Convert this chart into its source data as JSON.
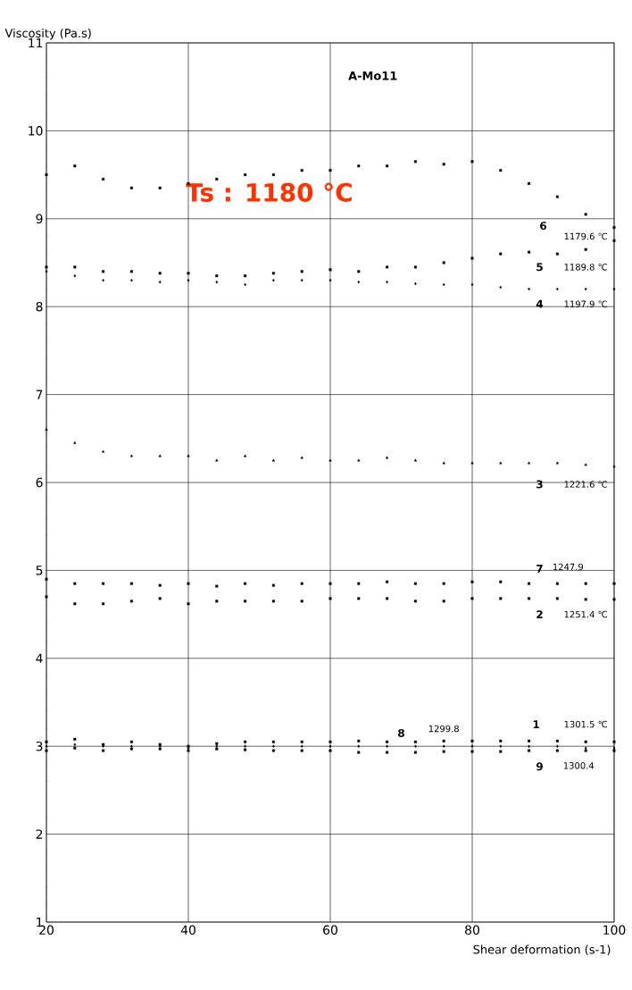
{
  "chart_data": {
    "type": "scatter",
    "title": "A-Mo11",
    "xlabel": "Shear deformation (s-1)",
    "ylabel": "Viscosity (Pa.s)",
    "x": [
      20,
      24,
      28,
      32,
      36,
      40,
      44,
      48,
      52,
      56,
      60,
      64,
      68,
      72,
      76,
      80,
      84,
      88,
      92,
      96,
      100
    ],
    "xlim": [
      20,
      100
    ],
    "xticks": [
      20,
      40,
      60,
      80,
      100
    ],
    "ylim": [
      1,
      11
    ],
    "yticks": [
      1,
      2,
      3,
      4,
      5,
      6,
      7,
      8,
      9,
      10,
      11
    ],
    "grid": true,
    "series": [
      {
        "name": "6",
        "color": "#000000",
        "marker": "square",
        "values": [
          9.5,
          9.6,
          9.45,
          9.35,
          9.35,
          9.4,
          9.45,
          9.5,
          9.5,
          9.55,
          9.55,
          9.6,
          9.6,
          9.65,
          9.62,
          9.65,
          9.55,
          9.4,
          9.25,
          9.05,
          8.9
        ]
      },
      {
        "name": "5",
        "color": "#000000",
        "marker": "square",
        "values": [
          8.45,
          8.45,
          8.4,
          8.4,
          8.38,
          8.38,
          8.35,
          8.35,
          8.38,
          8.4,
          8.42,
          8.4,
          8.45,
          8.45,
          8.5,
          8.55,
          8.6,
          8.62,
          8.6,
          8.65,
          8.75
        ]
      },
      {
        "name": "4",
        "color": "#000000",
        "marker": "diamond",
        "values": [
          8.4,
          8.35,
          8.3,
          8.3,
          8.28,
          8.3,
          8.28,
          8.25,
          8.3,
          8.3,
          8.3,
          8.28,
          8.28,
          8.26,
          8.25,
          8.25,
          8.22,
          8.2,
          8.2,
          8.2,
          8.2
        ]
      },
      {
        "name": "3",
        "color": "#000000",
        "marker": "triangle",
        "values": [
          6.6,
          6.45,
          6.35,
          6.3,
          6.3,
          6.3,
          6.25,
          6.3,
          6.25,
          6.28,
          6.25,
          6.25,
          6.28,
          6.25,
          6.22,
          6.22,
          6.22,
          6.22,
          6.22,
          6.2,
          6.18
        ]
      },
      {
        "name": "7",
        "color": "#000000",
        "marker": "square",
        "values": [
          4.9,
          4.85,
          4.85,
          4.85,
          4.83,
          4.85,
          4.82,
          4.85,
          4.83,
          4.85,
          4.85,
          4.85,
          4.87,
          4.85,
          4.85,
          4.87,
          4.87,
          4.85,
          4.85,
          4.85,
          4.85
        ]
      },
      {
        "name": "2",
        "color": "#000000",
        "marker": "square",
        "values": [
          4.7,
          4.62,
          4.62,
          4.65,
          4.68,
          4.62,
          4.65,
          4.65,
          4.65,
          4.65,
          4.68,
          4.68,
          4.68,
          4.65,
          4.65,
          4.68,
          4.68,
          4.68,
          4.68,
          4.67,
          4.67
        ]
      },
      {
        "name": "1",
        "color": "#000000",
        "marker": "square",
        "values": [
          3.05,
          3.08,
          3.02,
          3.05,
          3.02,
          3.0,
          3.03,
          3.05,
          3.05,
          3.05,
          3.05,
          3.06,
          3.05,
          3.05,
          3.06,
          3.06,
          3.06,
          3.06,
          3.06,
          3.05,
          3.05
        ]
      },
      {
        "name": "8",
        "color": "#000000",
        "marker": "diamond",
        "values": [
          3.0,
          3.02,
          3.0,
          3.0,
          3.0,
          2.98,
          3.0,
          3.0,
          3.0,
          3.0,
          3.0,
          3.0,
          3.0,
          3.0,
          3.0,
          3.0,
          3.0,
          3.0,
          3.0,
          2.98,
          2.98
        ]
      },
      {
        "name": "9",
        "color": "#000000",
        "marker": "square",
        "values": [
          2.95,
          2.98,
          2.95,
          2.97,
          2.97,
          2.95,
          2.97,
          2.96,
          2.95,
          2.95,
          2.95,
          2.93,
          2.93,
          2.93,
          2.94,
          2.94,
          2.94,
          2.95,
          2.95,
          2.95,
          2.95
        ]
      }
    ],
    "annotations": [
      "Ts : 1180 °C",
      "1179.6 ℃",
      "1189.8 ℃",
      "1197.9 ℃",
      "1221.6 ℃",
      "1247.9",
      "1251.4 ℃",
      "1299.8",
      "1301.5 ℃",
      "1300.4"
    ]
  }
}
